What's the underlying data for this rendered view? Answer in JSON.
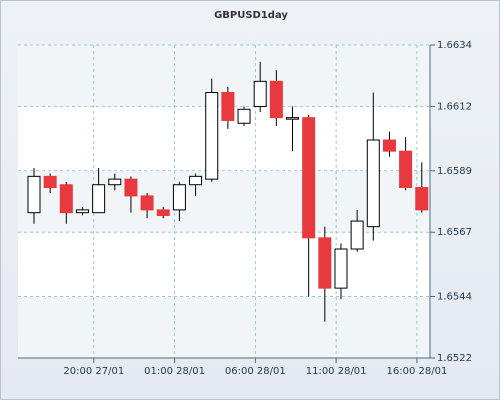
{
  "chart_data": {
    "type": "candlestick",
    "title": "GBPUSD1day",
    "y_ticks": [
      "1.6634",
      "1.6612",
      "1.6589",
      "1.6567",
      "1.6544",
      "1.6522"
    ],
    "x_ticks": [
      "20:00 27/01",
      "01:00 28/01",
      "06:00 28/01",
      "11:00 28/01",
      "16:00 28/01"
    ],
    "ylim": [
      1.6522,
      1.6634
    ],
    "grid": true,
    "colors": {
      "up": "#ffffff",
      "down": "#e8393e",
      "wick": "#000000",
      "grid": "#7ec0c0",
      "plot_bg": "#ffffff"
    },
    "candles": [
      {
        "open": 1.6574,
        "close": 1.6587,
        "high": 1.659,
        "low": 1.657
      },
      {
        "open": 1.6587,
        "close": 1.6583,
        "high": 1.6588,
        "low": 1.6581
      },
      {
        "open": 1.6584,
        "close": 1.6574,
        "high": 1.6585,
        "low": 1.657
      },
      {
        "open": 1.6574,
        "close": 1.6575,
        "high": 1.6576,
        "low": 1.6573
      },
      {
        "open": 1.6574,
        "close": 1.6584,
        "high": 1.659,
        "low": 1.6574
      },
      {
        "open": 1.6584,
        "close": 1.6586,
        "high": 1.6588,
        "low": 1.6582
      },
      {
        "open": 1.6586,
        "close": 1.658,
        "high": 1.6587,
        "low": 1.6574
      },
      {
        "open": 1.658,
        "close": 1.6575,
        "high": 1.6581,
        "low": 1.6572
      },
      {
        "open": 1.6575,
        "close": 1.6573,
        "high": 1.6576,
        "low": 1.6572
      },
      {
        "open": 1.6575,
        "close": 1.6584,
        "high": 1.6585,
        "low": 1.6571
      },
      {
        "open": 1.6584,
        "close": 1.6587,
        "high": 1.6588,
        "low": 1.658
      },
      {
        "open": 1.6586,
        "close": 1.6617,
        "high": 1.6622,
        "low": 1.6585
      },
      {
        "open": 1.6617,
        "close": 1.6607,
        "high": 1.6619,
        "low": 1.6604
      },
      {
        "open": 1.6606,
        "close": 1.6611,
        "high": 1.6612,
        "low": 1.6605
      },
      {
        "open": 1.6612,
        "close": 1.6621,
        "high": 1.6628,
        "low": 1.661
      },
      {
        "open": 1.6621,
        "close": 1.6608,
        "high": 1.6625,
        "low": 1.6605
      },
      {
        "open": 1.6608,
        "close": 1.6608,
        "high": 1.6612,
        "low": 1.6596
      },
      {
        "open": 1.6608,
        "close": 1.6565,
        "high": 1.6609,
        "low": 1.6544
      },
      {
        "open": 1.6565,
        "close": 1.6547,
        "high": 1.6569,
        "low": 1.6535
      },
      {
        "open": 1.6547,
        "close": 1.6561,
        "high": 1.6563,
        "low": 1.6543
      },
      {
        "open": 1.6561,
        "close": 1.6571,
        "high": 1.6575,
        "low": 1.656
      },
      {
        "open": 1.6569,
        "close": 1.66,
        "high": 1.6617,
        "low": 1.6564
      },
      {
        "open": 1.66,
        "close": 1.6596,
        "high": 1.6603,
        "low": 1.6594
      },
      {
        "open": 1.6596,
        "close": 1.6583,
        "high": 1.6601,
        "low": 1.6582
      },
      {
        "open": 1.6583,
        "close": 1.6575,
        "high": 1.6592,
        "low": 1.6574
      }
    ]
  }
}
